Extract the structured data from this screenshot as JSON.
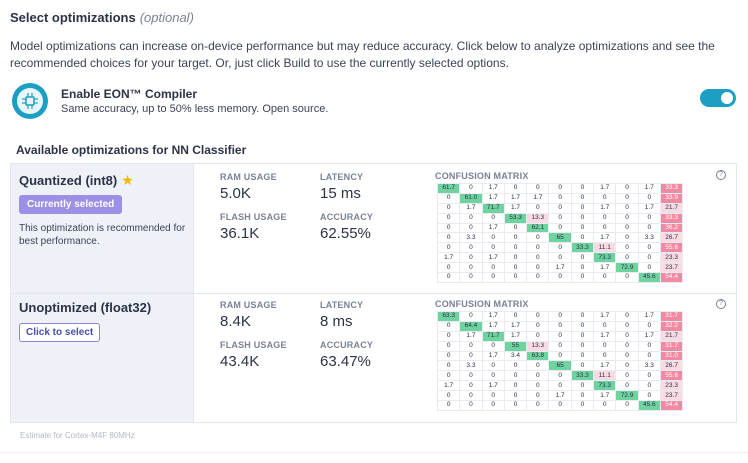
{
  "header": {
    "title": "Select optimizations",
    "optional": "(optional)",
    "description": "Model optimizations can increase on-device performance but may reduce accuracy. Click below to analyze optimizations and see the recommended choices for your target. Or, just click Build to use the currently selected options."
  },
  "eon": {
    "title": "Enable EON™ Compiler",
    "subtitle": "Same accuracy, up to 50% less memory. Open source.",
    "enabled": true,
    "icon": "brain-chip-icon"
  },
  "section": {
    "title": "Available optimizations for NN Classifier"
  },
  "labels": {
    "ram": "RAM USAGE",
    "flash": "FLASH USAGE",
    "latency": "LATENCY",
    "accuracy": "ACCURACY",
    "confusion": "CONFUSION MATRIX",
    "help": "?"
  },
  "models": [
    {
      "name": "Quantized (int8)",
      "star": "★",
      "button": "Currently selected",
      "recommendation": "This optimization is recommended for best performance.",
      "ram": "5.0K",
      "flash": "36.1K",
      "latency": "15 ms",
      "accuracy": "62.55%",
      "matrix": [
        [
          "61.7",
          "0",
          "1.7",
          "0",
          "0",
          "0",
          "0",
          "1.7",
          "0",
          "1.7",
          "33.3"
        ],
        [
          "0",
          "61.0",
          "1.7",
          "1.7",
          "1.7",
          "0",
          "0",
          "0",
          "0",
          "0",
          "33.9"
        ],
        [
          "0",
          "1.7",
          "71.7",
          "1.7",
          "0",
          "0",
          "0",
          "1.7",
          "0",
          "1.7",
          "21.7"
        ],
        [
          "0",
          "0",
          "0",
          "53.3",
          "13.3",
          "0",
          "0",
          "0",
          "0",
          "0",
          "33.3"
        ],
        [
          "0",
          "0",
          "1.7",
          "0",
          "62.1",
          "0",
          "0",
          "0",
          "0",
          "0",
          "36.2"
        ],
        [
          "0",
          "3.3",
          "0",
          "0",
          "0",
          "65",
          "0",
          "1.7",
          "0",
          "3.3",
          "26.7"
        ],
        [
          "0",
          "0",
          "0",
          "0",
          "0",
          "0",
          "33.3",
          "11.1",
          "0",
          "0",
          "55.6"
        ],
        [
          "1.7",
          "0",
          "1.7",
          "0",
          "0",
          "0",
          "0",
          "73.3",
          "0",
          "0",
          "23.3"
        ],
        [
          "0",
          "0",
          "0",
          "0",
          "0",
          "1.7",
          "0",
          "1.7",
          "72.9",
          "0",
          "23.7"
        ],
        [
          "0",
          "0",
          "0",
          "0",
          "0",
          "0",
          "0",
          "0",
          "0",
          "45.6",
          "54.4"
        ]
      ]
    },
    {
      "name": "Unoptimized (float32)",
      "button": "Click to select",
      "ram": "8.4K",
      "flash": "43.4K",
      "latency": "8 ms",
      "accuracy": "63.47%",
      "matrix": [
        [
          "63.3",
          "0",
          "1.7",
          "0",
          "0",
          "0",
          "0",
          "1.7",
          "0",
          "1.7",
          "31.7"
        ],
        [
          "0",
          "64.4",
          "1.7",
          "1.7",
          "0",
          "0",
          "0",
          "0",
          "0",
          "0",
          "32.2"
        ],
        [
          "0",
          "1.7",
          "71.7",
          "1.7",
          "0",
          "0",
          "0",
          "1.7",
          "0",
          "1.7",
          "21.7"
        ],
        [
          "0",
          "0",
          "0",
          "55",
          "13.3",
          "0",
          "0",
          "0",
          "0",
          "0",
          "31.7"
        ],
        [
          "0",
          "0",
          "1.7",
          "3.4",
          "63.8",
          "0",
          "0",
          "0",
          "0",
          "0",
          "31.0"
        ],
        [
          "0",
          "3.3",
          "0",
          "0",
          "0",
          "65",
          "0",
          "1.7",
          "0",
          "3.3",
          "26.7"
        ],
        [
          "0",
          "0",
          "0",
          "0",
          "0",
          "0",
          "33.3",
          "11.1",
          "0",
          "0",
          "55.6"
        ],
        [
          "1.7",
          "0",
          "1.7",
          "0",
          "0",
          "0",
          "0",
          "73.3",
          "0",
          "0",
          "23.3"
        ],
        [
          "0",
          "0",
          "0",
          "0",
          "0",
          "1.7",
          "0",
          "1.7",
          "72.9",
          "0",
          "23.7"
        ],
        [
          "0",
          "0",
          "0",
          "0",
          "0",
          "0",
          "0",
          "0",
          "0",
          "45.6",
          "54.4"
        ]
      ]
    }
  ],
  "footnote": "Estimate for Cortex-M4F 80MHz",
  "colors": {
    "accent": "#1d9fc4",
    "diag": "#6fd3a0",
    "uncertain": "#f08aa2",
    "badge": "#9b8fe6"
  }
}
